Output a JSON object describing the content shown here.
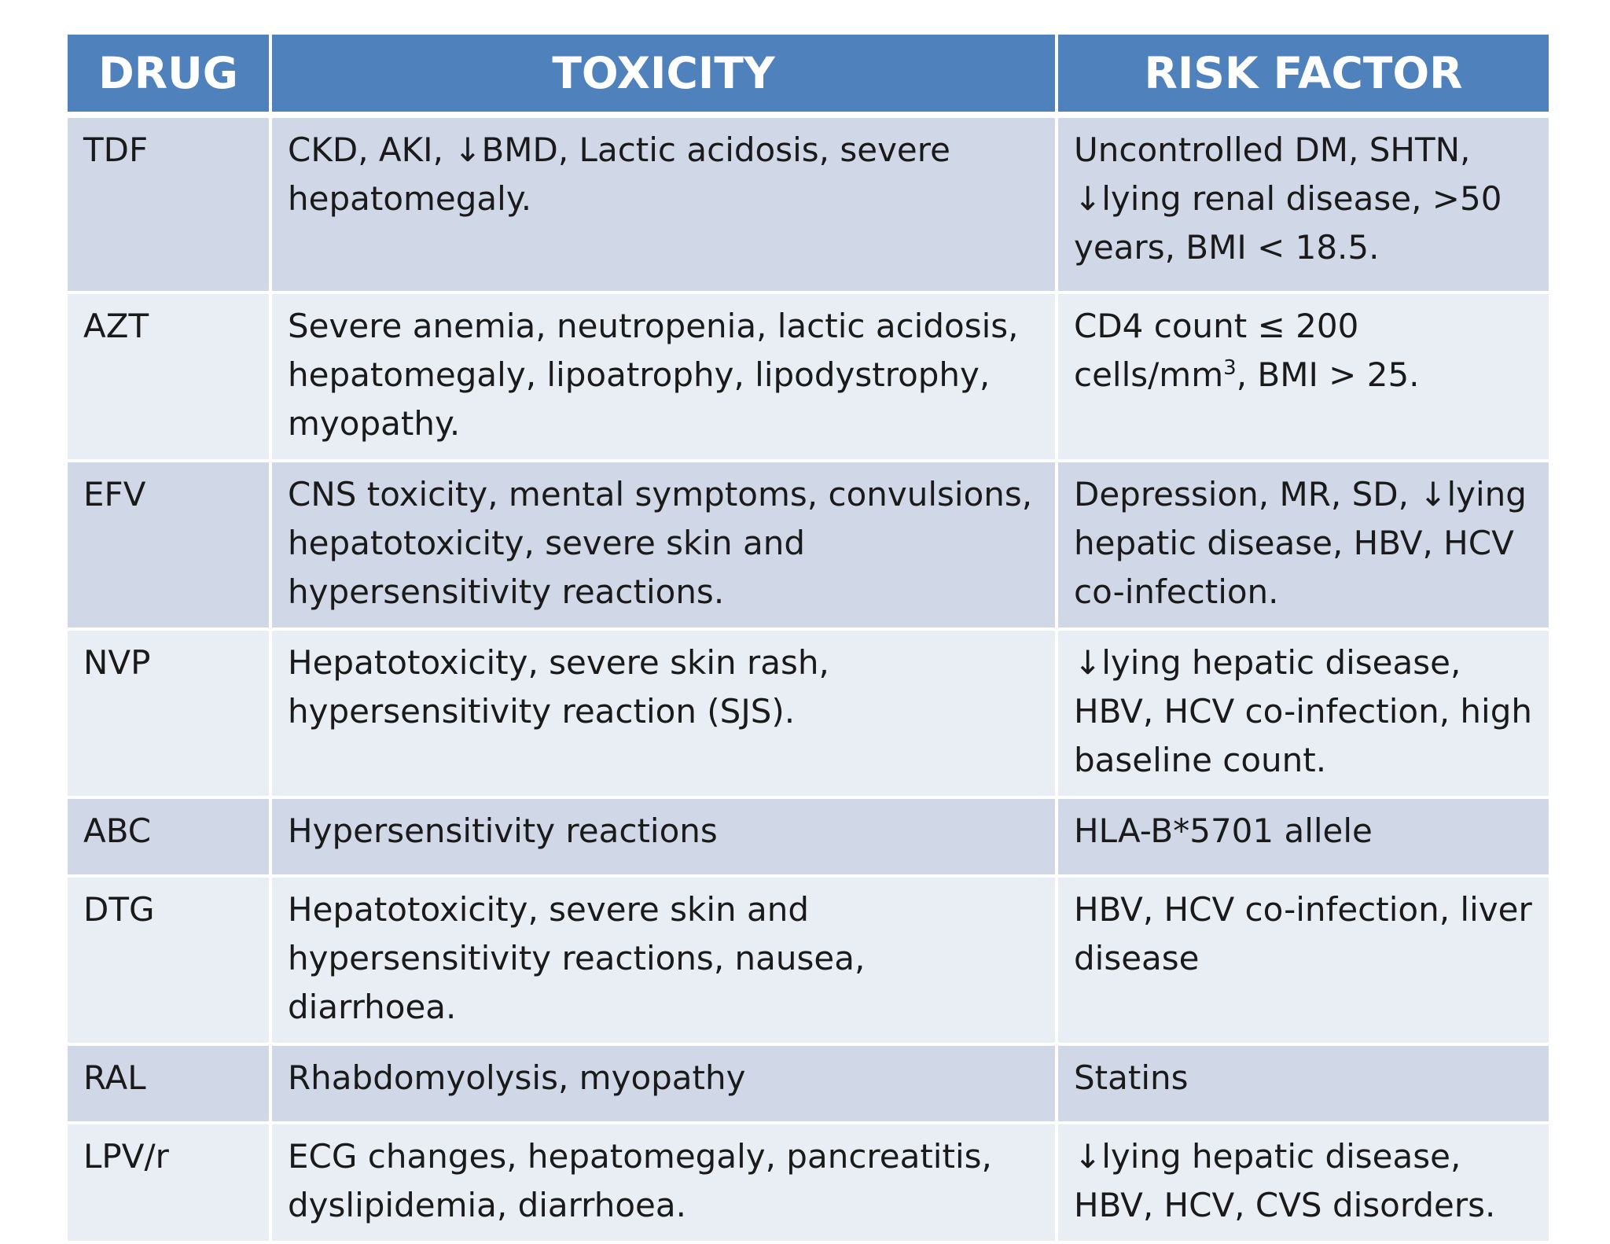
{
  "table": {
    "headers": {
      "drug": "DRUG",
      "toxicity": "TOXICITY",
      "risk_factor": "RISK FACTOR"
    },
    "rows": [
      {
        "drug": "TDF",
        "toxicity": "CKD, AKI, ↓BMD, Lactic acidosis, severe hepatomegaly.",
        "risk_factor": "Uncontrolled DM, SHTN, ↓lying renal disease, >50 years, BMI < 18.5."
      },
      {
        "drug": "AZT",
        "toxicity": "Severe anemia, neutropenia, lactic acidosis, hepatomegaly, lipoatrophy, lipodystrophy, myopathy.",
        "risk_factor_pre": "CD4 count ≤ 200 cells/mm",
        "risk_factor_sup": "3",
        "risk_factor_post": ", BMI > 25."
      },
      {
        "drug": "EFV",
        "toxicity": "CNS toxicity, mental symptoms, convulsions, hepatotoxicity, severe skin and hypersensitivity reactions.",
        "risk_factor": "Depression, MR, SD, ↓lying hepatic disease, HBV, HCV co-infection."
      },
      {
        "drug": "NVP",
        "toxicity": "Hepatotoxicity, severe skin rash, hypersensitivity reaction (SJS).",
        "risk_factor": "↓lying hepatic disease, HBV, HCV co-infection, high baseline count."
      },
      {
        "drug": "ABC",
        "toxicity": "Hypersensitivity reactions",
        "risk_factor": "HLA-B*5701 allele"
      },
      {
        "drug": "DTG",
        "toxicity": "Hepatotoxicity, severe skin and hypersensitivity reactions, nausea, diarrhoea.",
        "risk_factor": "HBV, HCV co-infection, liver disease"
      },
      {
        "drug": "RAL",
        "toxicity": "Rhabdomyolysis, myopathy",
        "risk_factor": "Statins"
      },
      {
        "drug": "LPV/r",
        "toxicity": "ECG changes, hepatomegaly, pancreatitis, dyslipidemia, diarrhoea.",
        "risk_factor": "↓lying hepatic disease, HBV, HCV, CVS disorders."
      }
    ]
  },
  "colors": {
    "header_bg": "#4f81bd",
    "header_text": "#ffffff",
    "row_band_dark": "#d0d8e8",
    "row_band_light": "#e9edf4"
  }
}
